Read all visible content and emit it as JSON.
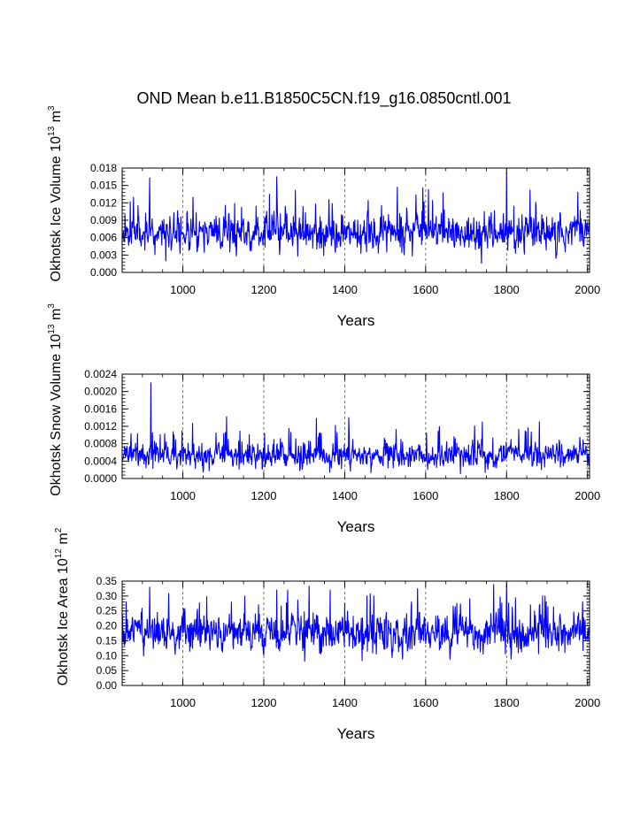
{
  "title": "OND Mean b.e11.B1850C5CN.f19_g16.0850cntl.001",
  "line_color": "#0000ff",
  "chart_data": [
    {
      "type": "line",
      "ylabel_main": "Okhotsk Ice Volume 10",
      "ylabel_exp": "13",
      "ylabel_unit": " m",
      "ylabel_unit_exp": "3",
      "xlabel": "Years",
      "xlim": [
        850,
        2005
      ],
      "ylim": [
        0.0,
        0.018
      ],
      "yticks": [
        0.0,
        0.003,
        0.006,
        0.009,
        0.012,
        0.015,
        0.018
      ],
      "ytick_labels": [
        "0.000",
        "0.003",
        "0.006",
        "0.009",
        "0.012",
        "0.015",
        "0.018"
      ],
      "xticks": [
        1000,
        1200,
        1400,
        1600,
        1800,
        2000
      ],
      "xtick_labels": [
        "1000",
        "1200",
        "1400",
        "1600",
        "1800",
        "2000"
      ],
      "grid_x": [
        1000,
        1200,
        1400,
        1600,
        1800,
        2000
      ],
      "series": {
        "name": "Okhotsk Ice Volume",
        "x_start": 850,
        "x_end": 2005,
        "mean": 0.0068,
        "spread": 0.0022,
        "min": 0.0012,
        "max": 0.0172,
        "seed": 11,
        "peaks": [
          [
            918,
            0.0163
          ],
          [
            1232,
            0.0165
          ],
          [
            1530,
            0.0147
          ],
          [
            1800,
            0.0172
          ],
          [
            1858,
            0.0142
          ]
        ]
      }
    },
    {
      "type": "line",
      "ylabel_main": "Okhotsk Snow Volume 10",
      "ylabel_exp": "13",
      "ylabel_unit": " m",
      "ylabel_unit_exp": "3",
      "xlabel": "Years",
      "xlim": [
        850,
        2005
      ],
      "ylim": [
        0.0,
        0.0024
      ],
      "yticks": [
        0.0,
        0.0004,
        0.0008,
        0.0012,
        0.0016,
        0.002,
        0.0024
      ],
      "ytick_labels": [
        "0.0000",
        "0.0004",
        "0.0008",
        "0.0012",
        "0.0016",
        "0.0020",
        "0.0024"
      ],
      "xticks": [
        1000,
        1200,
        1400,
        1600,
        1800,
        2000
      ],
      "xtick_labels": [
        "1000",
        "1200",
        "1400",
        "1600",
        "1800",
        "2000"
      ],
      "grid_x": [
        1000,
        1200,
        1400,
        1600,
        1800,
        2000
      ],
      "series": {
        "name": "Okhotsk Snow Volume",
        "x_start": 850,
        "x_end": 2005,
        "mean": 0.00052,
        "spread": 0.0002,
        "min": 5e-05,
        "max": 0.0022,
        "seed": 23,
        "peaks": [
          [
            921,
            0.0022
          ],
          [
            1108,
            0.00142
          ],
          [
            1330,
            0.00138
          ],
          [
            1410,
            0.0014
          ],
          [
            1740,
            0.0013
          ]
        ]
      }
    },
    {
      "type": "line",
      "ylabel_main": "Okhotsk Ice Area 10",
      "ylabel_exp": "12",
      "ylabel_unit": " m",
      "ylabel_unit_exp": "2",
      "xlabel": "Years",
      "xlim": [
        850,
        2005
      ],
      "ylim": [
        0.0,
        0.35
      ],
      "yticks": [
        0.0,
        0.05,
        0.1,
        0.15,
        0.2,
        0.25,
        0.3,
        0.35
      ],
      "ytick_labels": [
        "0.00",
        "0.05",
        "0.10",
        "0.15",
        "0.20",
        "0.25",
        "0.30",
        "0.35"
      ],
      "xticks": [
        1000,
        1200,
        1400,
        1600,
        1800,
        2000
      ],
      "xtick_labels": [
        "1000",
        "1200",
        "1400",
        "1600",
        "1800",
        "2000"
      ],
      "grid_x": [
        1000,
        1200,
        1400,
        1600,
        1800,
        2000
      ],
      "series": {
        "name": "Okhotsk Ice Area",
        "x_start": 850,
        "x_end": 2005,
        "mean": 0.175,
        "spread": 0.045,
        "min": 0.05,
        "max": 0.34,
        "seed": 37,
        "peaks": [
          [
            918,
            0.33
          ],
          [
            1232,
            0.32
          ],
          [
            1800,
            0.34
          ],
          [
            1895,
            0.3
          ],
          [
            1988,
            0.28
          ]
        ]
      }
    }
  ]
}
